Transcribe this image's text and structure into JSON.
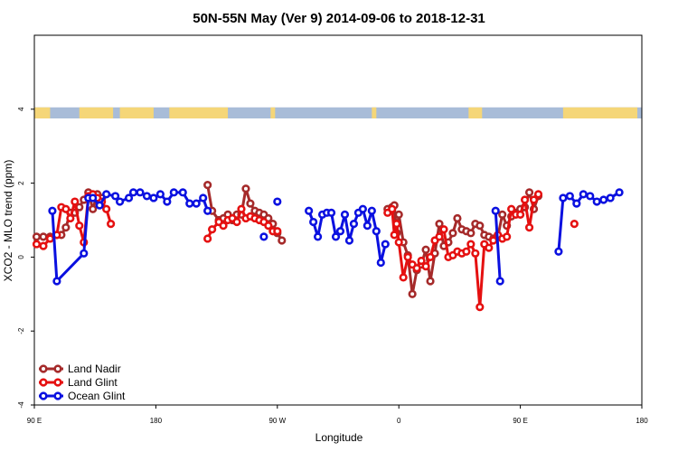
{
  "chart_data": {
    "type": "line",
    "title": "50N-55N May (Ver 9)   2014-09-06 to 2018-12-31",
    "xlabel": "Longitude",
    "ylabel": "XCO2 - MLO trend (ppm)",
    "xlim": [
      -90,
      180
    ],
    "ylim": [
      -4,
      6
    ],
    "x_ticks": [
      {
        "value": -90,
        "label": "90 E"
      },
      {
        "value": -36,
        "label": "180"
      },
      {
        "value": 18,
        "label": "90 W"
      },
      {
        "value": 72,
        "label": "0"
      },
      {
        "value": 126,
        "label": "90 E"
      },
      {
        "value": 180,
        "label": "180"
      }
    ],
    "y_ticks": [
      {
        "value": -4,
        "label": "-4"
      },
      {
        "value": -2,
        "label": "-2"
      },
      {
        "value": 0,
        "label": "0"
      },
      {
        "value": 2,
        "label": "2"
      },
      {
        "value": 4,
        "label": "4"
      }
    ],
    "grid": false,
    "legend_position": "bottom-left",
    "land_ocean_strip": {
      "y_range": [
        3.75,
        4.05
      ],
      "ocean_color": "#a8bcd8",
      "land_color": "#f5d678",
      "land_x_ranges": [
        [
          -90,
          -83
        ],
        [
          -70,
          -55
        ],
        [
          -52,
          -37
        ],
        [
          -30,
          -4
        ],
        [
          15,
          17
        ],
        [
          60,
          62
        ],
        [
          103,
          109
        ],
        [
          145,
          178
        ]
      ]
    },
    "series": [
      {
        "name": "Land Nadir",
        "color": "#a52a2a",
        "segments": [
          [
            [
              -89,
              0.55
            ],
            [
              -86,
              0.55
            ],
            [
              -83,
              0.55
            ],
            [
              -80,
              0.6
            ],
            [
              -78,
              0.6
            ],
            [
              -76,
              0.8
            ],
            [
              -74,
              1.2
            ],
            [
              -72,
              1.2
            ],
            [
              -70,
              1.35
            ],
            [
              -68,
              1.55
            ],
            [
              -66,
              1.75
            ],
            [
              -64,
              1.3
            ],
            [
              -62,
              1.7
            ],
            [
              -60,
              1.6
            ]
          ],
          [
            [
              -13,
              1.95
            ],
            [
              -11,
              1.25
            ],
            [
              -8,
              1.0
            ],
            [
              -6,
              1.05
            ],
            [
              -4,
              1.15
            ],
            [
              -2,
              1.0
            ],
            [
              0,
              1.15
            ],
            [
              2,
              1.15
            ],
            [
              4,
              1.85
            ],
            [
              6,
              1.45
            ],
            [
              8,
              1.25
            ],
            [
              10,
              1.2
            ],
            [
              12,
              1.15
            ],
            [
              14,
              1.05
            ],
            [
              16,
              0.9
            ],
            [
              18,
              0.65
            ],
            [
              20,
              0.45
            ]
          ],
          [
            [
              67,
              1.3
            ],
            [
              69,
              1.35
            ],
            [
              70,
              1.4
            ],
            [
              71,
              0.65
            ],
            [
              72,
              1.15
            ],
            [
              74,
              0.4
            ],
            [
              76,
              0.05
            ],
            [
              78,
              -1.0
            ],
            [
              80,
              -0.35
            ],
            [
              82,
              -0.2
            ],
            [
              84,
              0.2
            ],
            [
              86,
              -0.65
            ],
            [
              88,
              0.1
            ],
            [
              90,
              0.9
            ],
            [
              92,
              0.3
            ],
            [
              94,
              0.4
            ],
            [
              96,
              0.65
            ],
            [
              98,
              1.05
            ],
            [
              100,
              0.75
            ],
            [
              102,
              0.7
            ],
            [
              104,
              0.65
            ],
            [
              106,
              0.9
            ],
            [
              108,
              0.85
            ],
            [
              110,
              0.6
            ],
            [
              112,
              0.55
            ],
            [
              114,
              0.5
            ],
            [
              116,
              0.55
            ],
            [
              118,
              1.15
            ],
            [
              120,
              0.85
            ],
            [
              122,
              1.1
            ],
            [
              124,
              1.2
            ],
            [
              126,
              1.3
            ],
            [
              128,
              1.35
            ],
            [
              130,
              1.75
            ],
            [
              132,
              1.3
            ],
            [
              134,
              1.65
            ]
          ]
        ]
      },
      {
        "name": "Land Glint",
        "color": "#e51010",
        "segments": [
          [
            [
              -89,
              0.35
            ],
            [
              -86,
              0.3
            ],
            [
              -83,
              0.5
            ],
            [
              -80,
              0.6
            ],
            [
              -78,
              1.35
            ],
            [
              -76,
              1.3
            ],
            [
              -74,
              1.05
            ],
            [
              -72,
              1.5
            ],
            [
              -70,
              0.85
            ],
            [
              -68,
              0.4
            ],
            [
              -66,
              1.65
            ],
            [
              -64,
              1.7
            ],
            [
              -62,
              1.6
            ],
            [
              -60,
              1.5
            ],
            [
              -58,
              1.3
            ],
            [
              -56,
              0.9
            ]
          ],
          [
            [
              -13,
              0.5
            ],
            [
              -11,
              0.75
            ],
            [
              -8,
              0.95
            ],
            [
              -6,
              0.85
            ],
            [
              -4,
              1.0
            ],
            [
              -2,
              1.05
            ],
            [
              0,
              0.95
            ],
            [
              2,
              1.3
            ],
            [
              4,
              1.05
            ],
            [
              6,
              1.1
            ],
            [
              8,
              1.05
            ],
            [
              10,
              1.0
            ],
            [
              12,
              0.95
            ],
            [
              14,
              0.85
            ],
            [
              16,
              0.7
            ],
            [
              18,
              0.7
            ]
          ],
          [
            [
              67,
              1.2
            ],
            [
              69,
              1.3
            ],
            [
              70,
              0.6
            ],
            [
              71,
              0.9
            ],
            [
              72,
              0.4
            ],
            [
              74,
              -0.55
            ],
            [
              76,
              0.0
            ],
            [
              78,
              -0.2
            ],
            [
              80,
              -0.3
            ],
            [
              82,
              -0.1
            ],
            [
              84,
              -0.25
            ],
            [
              86,
              0.0
            ],
            [
              88,
              0.45
            ],
            [
              90,
              0.55
            ],
            [
              92,
              0.75
            ],
            [
              94,
              0.0
            ],
            [
              96,
              0.05
            ],
            [
              98,
              0.15
            ],
            [
              100,
              0.1
            ],
            [
              102,
              0.15
            ],
            [
              104,
              0.35
            ],
            [
              106,
              0.1
            ],
            [
              108,
              -1.35
            ],
            [
              110,
              0.35
            ],
            [
              112,
              0.25
            ],
            [
              114,
              0.45
            ],
            [
              116,
              0.6
            ],
            [
              118,
              0.5
            ],
            [
              120,
              0.55
            ],
            [
              122,
              1.3
            ],
            [
              124,
              1.15
            ],
            [
              126,
              1.15
            ],
            [
              128,
              1.55
            ],
            [
              130,
              0.8
            ],
            [
              132,
              1.55
            ],
            [
              134,
              1.7
            ]
          ],
          [
            [
              150,
              0.9
            ]
          ]
        ]
      },
      {
        "name": "Ocean Glint",
        "color": "#0a10e0",
        "segments": [
          [
            [
              -82,
              1.25
            ],
            [
              -80,
              -0.65
            ],
            [
              -68,
              0.1
            ],
            [
              -66,
              1.6
            ],
            [
              -64,
              1.6
            ],
            [
              -61,
              1.4
            ],
            [
              -58,
              1.7
            ],
            [
              -54,
              1.65
            ],
            [
              -52,
              1.5
            ],
            [
              -48,
              1.6
            ],
            [
              -46,
              1.75
            ],
            [
              -43,
              1.75
            ],
            [
              -40,
              1.65
            ],
            [
              -37,
              1.6
            ],
            [
              -34,
              1.7
            ],
            [
              -31,
              1.5
            ],
            [
              -28,
              1.75
            ],
            [
              -24,
              1.75
            ],
            [
              -21,
              1.45
            ],
            [
              -18,
              1.45
            ],
            [
              -15,
              1.6
            ],
            [
              -13,
              1.25
            ]
          ],
          [
            [
              12,
              0.55
            ]
          ],
          [
            [
              18,
              1.5
            ]
          ],
          [
            [
              32,
              1.25
            ],
            [
              34,
              0.95
            ],
            [
              36,
              0.55
            ],
            [
              38,
              1.15
            ],
            [
              40,
              1.2
            ],
            [
              42,
              1.2
            ],
            [
              44,
              0.55
            ],
            [
              46,
              0.7
            ],
            [
              48,
              1.15
            ],
            [
              50,
              0.45
            ],
            [
              52,
              0.9
            ],
            [
              54,
              1.2
            ],
            [
              56,
              1.3
            ],
            [
              58,
              0.85
            ],
            [
              60,
              1.25
            ],
            [
              62,
              0.7
            ],
            [
              64,
              -0.15
            ],
            [
              66,
              0.35
            ]
          ],
          [
            [
              115,
              1.25
            ],
            [
              117,
              -0.65
            ]
          ],
          [
            [
              143,
              0.15
            ],
            [
              145,
              1.6
            ],
            [
              148,
              1.65
            ],
            [
              151,
              1.45
            ],
            [
              154,
              1.7
            ],
            [
              157,
              1.65
            ],
            [
              160,
              1.5
            ],
            [
              163,
              1.55
            ],
            [
              166,
              1.6
            ],
            [
              170,
              1.75
            ]
          ]
        ]
      }
    ]
  }
}
